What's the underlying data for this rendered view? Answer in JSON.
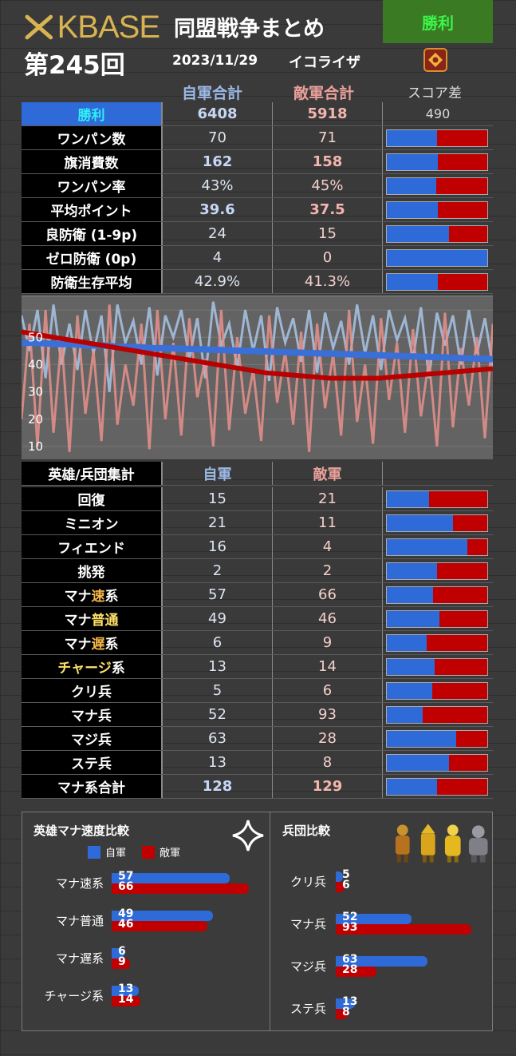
{
  "header": {
    "logo": "KBASE",
    "title": "同盟戦争まとめ",
    "result": "勝利",
    "round": "第245回",
    "date": "2023/11/29",
    "opponent": "イコライザ"
  },
  "columns": {
    "own": "自軍合計",
    "enemy": "敵軍合計",
    "diff": "スコア差"
  },
  "summary": {
    "label": "勝利",
    "own": "6408",
    "enemy": "5918",
    "diff": "490"
  },
  "stats": [
    {
      "label": "ワンパン数",
      "own": "70",
      "enemy": "71",
      "ratio": 0.5,
      "bold": false
    },
    {
      "label": "旗消費数",
      "own": "162",
      "enemy": "158",
      "ratio": 0.51,
      "bold": true
    },
    {
      "label": "ワンパン率",
      "own": "43%",
      "enemy": "45%",
      "ratio": 0.49,
      "bold": false
    },
    {
      "label": "平均ポイント",
      "own": "39.6",
      "enemy": "37.5",
      "ratio": 0.51,
      "bold": true
    },
    {
      "label": "良防衛 (1-9p)",
      "own": "24",
      "enemy": "15",
      "ratio": 0.62,
      "bold": false
    },
    {
      "label": "ゼロ防衛 (0p)",
      "own": "4",
      "enemy": "0",
      "ratio": 1.0,
      "bold": false
    },
    {
      "label": "防衛生存平均",
      "own": "42.9%",
      "enemy": "41.3%",
      "ratio": 0.51,
      "bold": false
    }
  ],
  "chart_data": {
    "type": "line",
    "y_ticks": [
      "50",
      "40",
      "30",
      "20",
      "10"
    ],
    "ylim": [
      5,
      65
    ],
    "series": [
      {
        "color": "#a8c4e6",
        "values": [
          58,
          45,
          60,
          35,
          62,
          40,
          55,
          38,
          60,
          44,
          58,
          30,
          62,
          48,
          56,
          40,
          61,
          36,
          58,
          50,
          60,
          42,
          57,
          35,
          63,
          47,
          55,
          39,
          60,
          45,
          58,
          34,
          61,
          48,
          57,
          41,
          60,
          37,
          59,
          46,
          56,
          40,
          62,
          44,
          58,
          38,
          60,
          49,
          57,
          42,
          61,
          35,
          59,
          47,
          58,
          40,
          60,
          44,
          57,
          39
        ]
      },
      {
        "color": "#e8908a",
        "values": [
          20,
          55,
          10,
          60,
          15,
          50,
          8,
          58,
          22,
          45,
          12,
          62,
          18,
          40,
          25,
          55,
          9,
          60,
          20,
          48,
          14,
          57,
          28,
          42,
          10,
          60,
          16,
          50,
          22,
          38,
          12,
          58,
          26,
          45,
          18,
          52,
          8,
          55,
          24,
          44,
          14,
          60,
          19,
          40,
          11,
          57,
          27,
          48,
          15,
          53,
          21,
          42,
          10,
          59,
          17,
          46,
          25,
          50,
          13,
          55
        ]
      },
      {
        "color": "#3a6fd8",
        "values": [
          48,
          48,
          47.5,
          47.5,
          47,
          47,
          46.5,
          46.5,
          46,
          46,
          45.8,
          45.6,
          45.4,
          45.2,
          45,
          44.8,
          44.6,
          44.4,
          44.2,
          44,
          43.8,
          43.6,
          43.4,
          43.2,
          43,
          42.8,
          42.6,
          42.4,
          42.2,
          42
        ]
      },
      {
        "color": "#b80000",
        "values": [
          52,
          51,
          50,
          49,
          48,
          47,
          46,
          45,
          44,
          43,
          42,
          41,
          40,
          39,
          38,
          37,
          36.5,
          36,
          35.5,
          35,
          35,
          35,
          35,
          35.5,
          36,
          36.5,
          37,
          37.5,
          38,
          38.5
        ]
      }
    ]
  },
  "units": {
    "header": {
      "label": "英雄/兵団集計",
      "own": "自軍",
      "enemy": "敵軍"
    },
    "rows": [
      {
        "label": "回復",
        "own": "15",
        "enemy": "21",
        "ratio": 0.42,
        "color": ""
      },
      {
        "label": "ミニオン",
        "own": "21",
        "enemy": "11",
        "ratio": 0.66,
        "color": ""
      },
      {
        "label": "フィエンド",
        "own": "16",
        "enemy": "4",
        "ratio": 0.8,
        "color": ""
      },
      {
        "label": "挑発",
        "own": "2",
        "enemy": "2",
        "ratio": 0.5,
        "color": ""
      },
      {
        "label": "マナ速系",
        "own": "57",
        "enemy": "66",
        "ratio": 0.46,
        "color": "orange",
        "pre": "マナ",
        "hl": "速",
        "post": "系"
      },
      {
        "label": "マナ普通",
        "own": "49",
        "enemy": "46",
        "ratio": 0.52,
        "color": "yellow",
        "pre": "マナ",
        "hl": "普通",
        "post": ""
      },
      {
        "label": "マナ遅系",
        "own": "6",
        "enemy": "9",
        "ratio": 0.4,
        "color": "orange",
        "pre": "マナ",
        "hl": "遅",
        "post": "系"
      },
      {
        "label": "チャージ系",
        "own": "13",
        "enemy": "14",
        "ratio": 0.48,
        "color": "yellow",
        "pre": "",
        "hl": "チャージ",
        "post": "系"
      },
      {
        "label": "クリ兵",
        "own": "5",
        "enemy": "6",
        "ratio": 0.45,
        "color": ""
      },
      {
        "label": "マナ兵",
        "own": "52",
        "enemy": "93",
        "ratio": 0.36,
        "color": ""
      },
      {
        "label": "マジ兵",
        "own": "63",
        "enemy": "28",
        "ratio": 0.69,
        "color": ""
      },
      {
        "label": "ステ兵",
        "own": "13",
        "enemy": "8",
        "ratio": 0.62,
        "color": ""
      },
      {
        "label": "マナ系合計",
        "own": "128",
        "enemy": "129",
        "ratio": 0.5,
        "color": "",
        "bold": true
      }
    ]
  },
  "panel": {
    "left": {
      "title": "英雄マナ速度比較",
      "legend_own": "自軍",
      "legend_enemy": "敵軍",
      "items": [
        {
          "label": "マナ速系",
          "own": 57,
          "enemy": 66
        },
        {
          "label": "マナ普通",
          "own": 49,
          "enemy": 46
        },
        {
          "label": "マナ遅系",
          "own": 6,
          "enemy": 9
        },
        {
          "label": "チャージ系",
          "own": 13,
          "enemy": 14
        }
      ]
    },
    "right": {
      "title": "兵団比較",
      "items": [
        {
          "label": "クリ兵",
          "own": 5,
          "enemy": 6
        },
        {
          "label": "マナ兵",
          "own": 52,
          "enemy": 93
        },
        {
          "label": "マジ兵",
          "own": 63,
          "enemy": 28
        },
        {
          "label": "ステ兵",
          "own": 13,
          "enemy": 8
        }
      ]
    }
  }
}
